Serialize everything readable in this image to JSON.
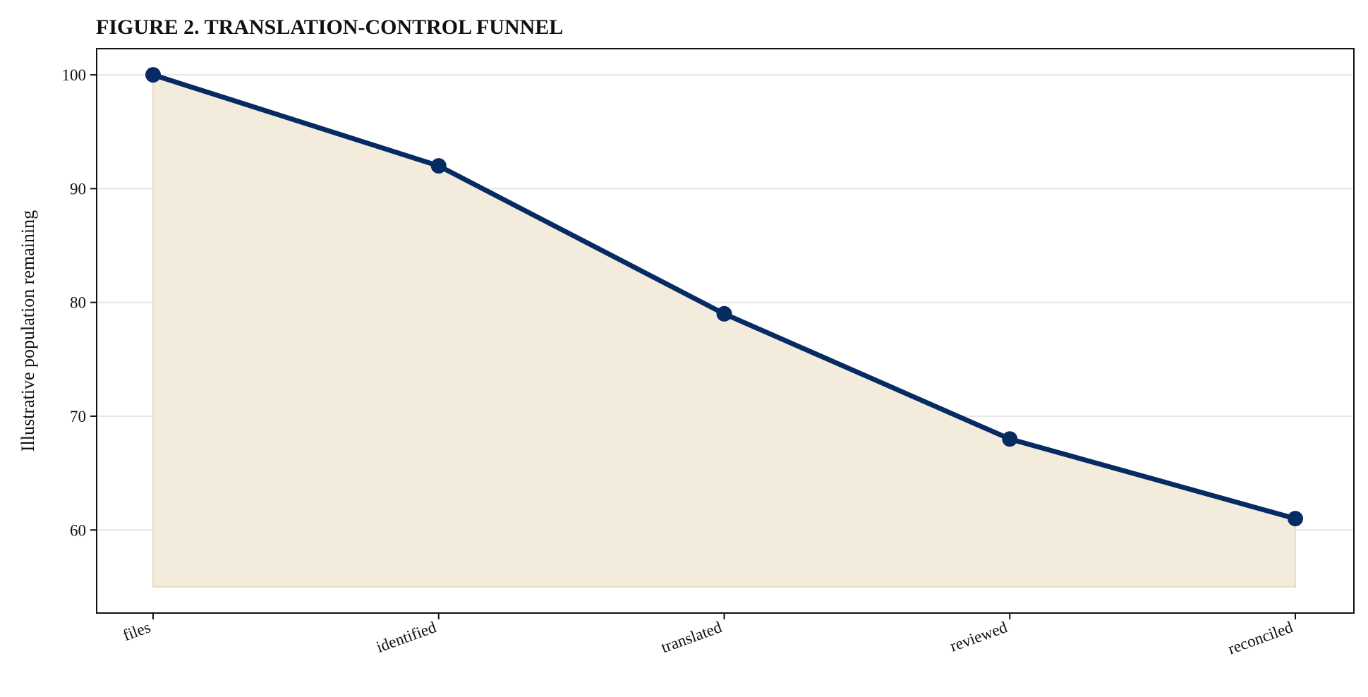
{
  "chart_data": {
    "type": "area",
    "title": "FIGURE 2. TRANSLATION-CONTROL FUNNEL",
    "xlabel": "",
    "ylabel": "Illustrative population remaining",
    "categories": [
      "files",
      "identified",
      "translated",
      "reviewed",
      "reconciled"
    ],
    "series": [
      {
        "values": [
          100,
          92,
          79,
          68,
          61
        ]
      }
    ],
    "fill_baseline": 55,
    "ylim": [
      52.7,
      102.3
    ],
    "yticks": [
      60,
      70,
      80,
      90,
      100
    ],
    "grid": "horizontal",
    "line_color": "#062a62",
    "fill_color": "#f3ecdc"
  }
}
